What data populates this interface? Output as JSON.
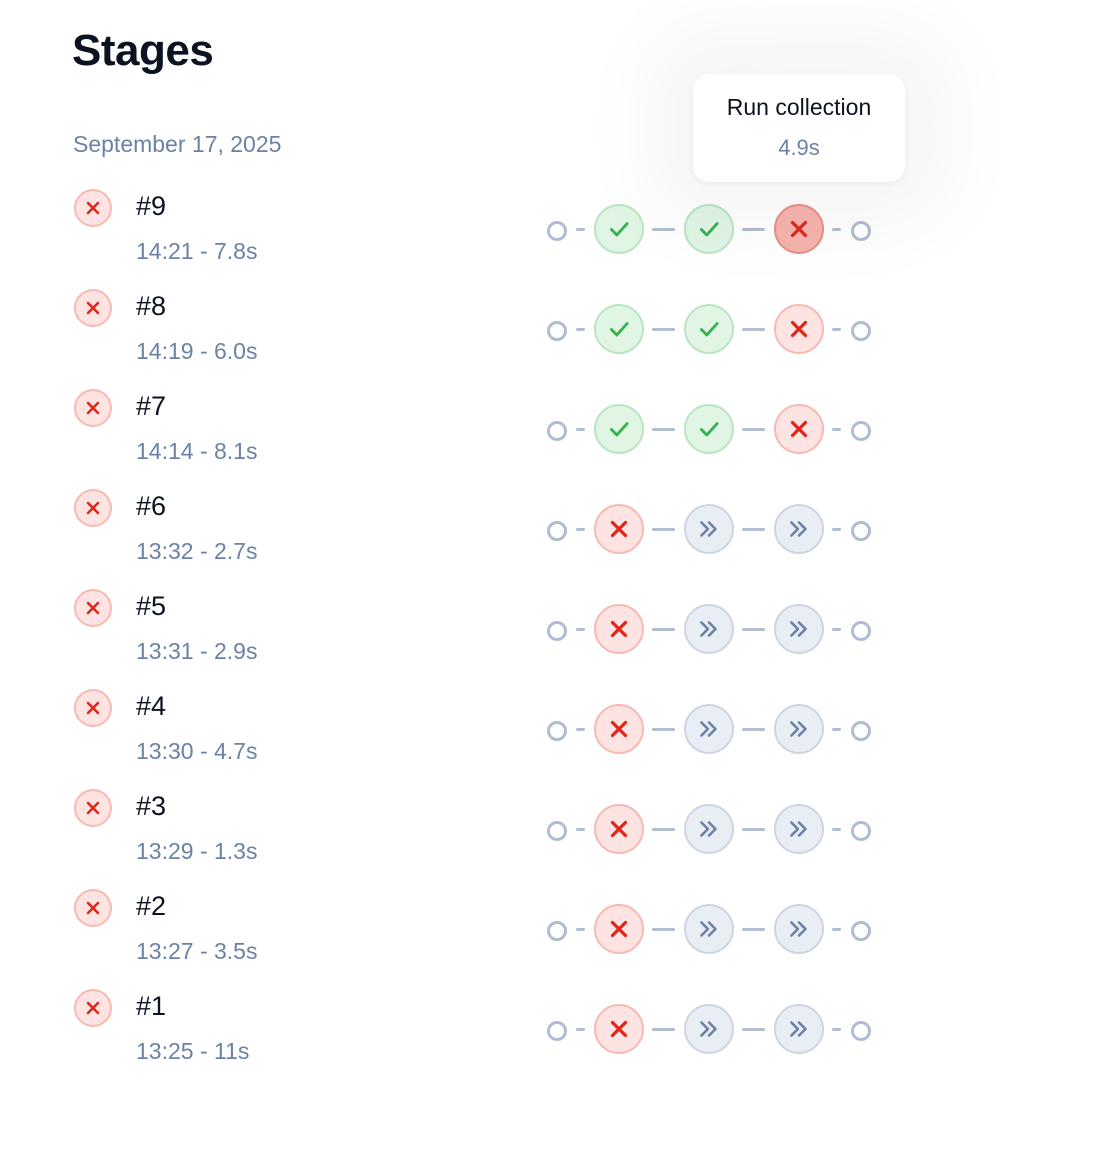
{
  "page_title": "Stages",
  "date_heading": "September 17, 2025",
  "tooltip": {
    "title": "Run collection",
    "duration": "4.9s"
  },
  "colors": {
    "failed": "#e0261b",
    "success": "#34b24f",
    "skipped": "#6b82a6",
    "connector": "#b1bdd0",
    "muted_text": "#6b82a6"
  },
  "runs": [
    {
      "number": "#9",
      "meta": "14:21 - 7.8s",
      "status": "failed",
      "stages": [
        "success",
        "success",
        "failed"
      ]
    },
    {
      "number": "#8",
      "meta": "14:19 - 6.0s",
      "status": "failed",
      "stages": [
        "success",
        "success",
        "failed"
      ]
    },
    {
      "number": "#7",
      "meta": "14:14 - 8.1s",
      "status": "failed",
      "stages": [
        "success",
        "success",
        "failed"
      ]
    },
    {
      "number": "#6",
      "meta": "13:32 - 2.7s",
      "status": "failed",
      "stages": [
        "failed",
        "skipped",
        "skipped"
      ]
    },
    {
      "number": "#5",
      "meta": "13:31 - 2.9s",
      "status": "failed",
      "stages": [
        "failed",
        "skipped",
        "skipped"
      ]
    },
    {
      "number": "#4",
      "meta": "13:30 - 4.7s",
      "status": "failed",
      "stages": [
        "failed",
        "skipped",
        "skipped"
      ]
    },
    {
      "number": "#3",
      "meta": "13:29 - 1.3s",
      "status": "failed",
      "stages": [
        "failed",
        "skipped",
        "skipped"
      ]
    },
    {
      "number": "#2",
      "meta": "13:27 - 3.5s",
      "status": "failed",
      "stages": [
        "failed",
        "skipped",
        "skipped"
      ]
    },
    {
      "number": "#1",
      "meta": "13:25 - 11s",
      "status": "failed",
      "stages": [
        "failed",
        "skipped",
        "skipped"
      ]
    }
  ]
}
